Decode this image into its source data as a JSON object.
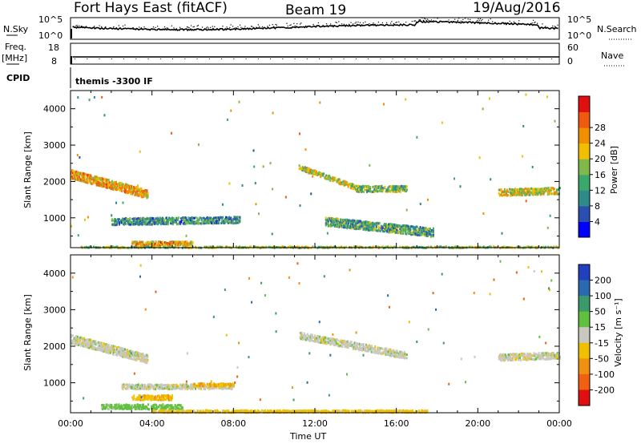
{
  "header": {
    "station": "Fort Hays East (fitACF)",
    "beam": "Beam 19",
    "date": "19/Aug/2016"
  },
  "params": {
    "nsky_label": "N.Sky",
    "nsearch_label": "N.Search",
    "freq_label_1": "Freq.",
    "freq_label_2": "[MHz]",
    "nave_label": "Nave",
    "cpid_label": "CPID",
    "cpid_text": "themis -3300 IF",
    "noise_left_ticks": [
      "10^5",
      "10^0"
    ],
    "noise_right_ticks": [
      "10^5",
      "10^0"
    ],
    "freq_ticks": [
      "18",
      "8"
    ],
    "nave_ticks": [
      "60",
      "0"
    ]
  },
  "axes": {
    "ylabel": "Slant Range [km]",
    "xlabel": "Time UT",
    "x_ticks": [
      "00:00",
      "04:00",
      "08:00",
      "12:00",
      "16:00",
      "20:00",
      "00:00"
    ],
    "y_ticks": [
      "1000",
      "2000",
      "3000",
      "4000"
    ]
  },
  "colorbars": {
    "power": {
      "label": "Power [dB]",
      "ticks": [
        "4",
        "8",
        "12",
        "16",
        "20",
        "24",
        "28"
      ],
      "colors": [
        "#0000ff",
        "#2a4fb0",
        "#2f8a8a",
        "#3aa86a",
        "#80b84a",
        "#f0c000",
        "#f09000",
        "#ef5a10",
        "#e01010"
      ]
    },
    "velocity": {
      "label": "Velocity [m s⁻¹]",
      "ticks": [
        "200",
        "100",
        "50",
        "15",
        "-15",
        "-50",
        "-100",
        "-200"
      ],
      "colors": [
        "#2040c0",
        "#2a6ab0",
        "#3a9a6a",
        "#60c040",
        "#c8c8c0",
        "#f0c000",
        "#f09010",
        "#f06010",
        "#e01010"
      ]
    }
  },
  "chart_data": [
    {
      "type": "heatmap",
      "title": "Power",
      "xlabel": "Time UT",
      "ylabel": "Slant Range [km]",
      "xlim": [
        0,
        24
      ],
      "ylim": [
        180,
        4500
      ],
      "colorbar": {
        "label": "Power [dB]",
        "range": [
          0,
          32
        ]
      },
      "features": [
        {
          "t_start": 0.0,
          "t_end": 3.8,
          "range_start": 2200,
          "range_end": 1650,
          "thickness_km": 250,
          "value": 22
        },
        {
          "t_start": 11.2,
          "t_end": 14.2,
          "range_start": 2400,
          "range_end": 1800,
          "thickness_km": 150,
          "value": 18
        },
        {
          "t_start": 14.0,
          "t_end": 16.5,
          "range_start": 1800,
          "range_end": 1800,
          "thickness_km": 180,
          "value": 14
        },
        {
          "t_start": 21.0,
          "t_end": 24.0,
          "range_start": 1700,
          "range_end": 1750,
          "thickness_km": 200,
          "value": 18
        },
        {
          "t_start": 2.0,
          "t_end": 8.3,
          "range_start": 900,
          "range_end": 950,
          "thickness_km": 200,
          "value": 10
        },
        {
          "t_start": 3.0,
          "t_end": 6.0,
          "range_start": 300,
          "range_end": 300,
          "thickness_km": 120,
          "value": 22
        },
        {
          "t_start": 12.5,
          "t_end": 17.8,
          "range_start": 900,
          "range_end": 600,
          "thickness_km": 250,
          "value": 12
        },
        {
          "t_start": 0.5,
          "t_end": 24.0,
          "range_start": 200,
          "range_end": 200,
          "thickness_km": 60,
          "value": 16
        }
      ]
    },
    {
      "type": "heatmap",
      "title": "Velocity",
      "xlabel": "Time UT",
      "ylabel": "Slant Range [km]",
      "xlim": [
        0,
        24
      ],
      "ylim": [
        180,
        4500
      ],
      "colorbar": {
        "label": "Velocity [m s⁻¹]",
        "range": [
          -250,
          250
        ]
      },
      "features": [
        {
          "t_start": 0.0,
          "t_end": 3.8,
          "range_start": 2200,
          "range_end": 1650,
          "thickness_km": 250,
          "value": 0
        },
        {
          "t_start": 11.2,
          "t_end": 16.5,
          "range_start": 2300,
          "range_end": 1750,
          "thickness_km": 200,
          "value": 0
        },
        {
          "t_start": 21.0,
          "t_end": 24.0,
          "range_start": 1700,
          "range_end": 1750,
          "thickness_km": 200,
          "value": 0
        },
        {
          "t_start": 2.5,
          "t_end": 8.0,
          "range_start": 900,
          "range_end": 900,
          "thickness_km": 150,
          "value": 0
        },
        {
          "t_start": 3.0,
          "t_end": 5.0,
          "range_start": 600,
          "range_end": 600,
          "thickness_km": 150,
          "value": -40
        },
        {
          "t_start": 1.5,
          "t_end": 5.5,
          "range_start": 350,
          "range_end": 350,
          "thickness_km": 150,
          "value": 30
        },
        {
          "t_start": 6.0,
          "t_end": 8.0,
          "range_start": 950,
          "range_end": 950,
          "thickness_km": 100,
          "value": -40
        },
        {
          "t_start": 4.0,
          "t_end": 17.5,
          "range_start": 220,
          "range_end": 220,
          "thickness_km": 80,
          "value": -30
        }
      ]
    }
  ]
}
